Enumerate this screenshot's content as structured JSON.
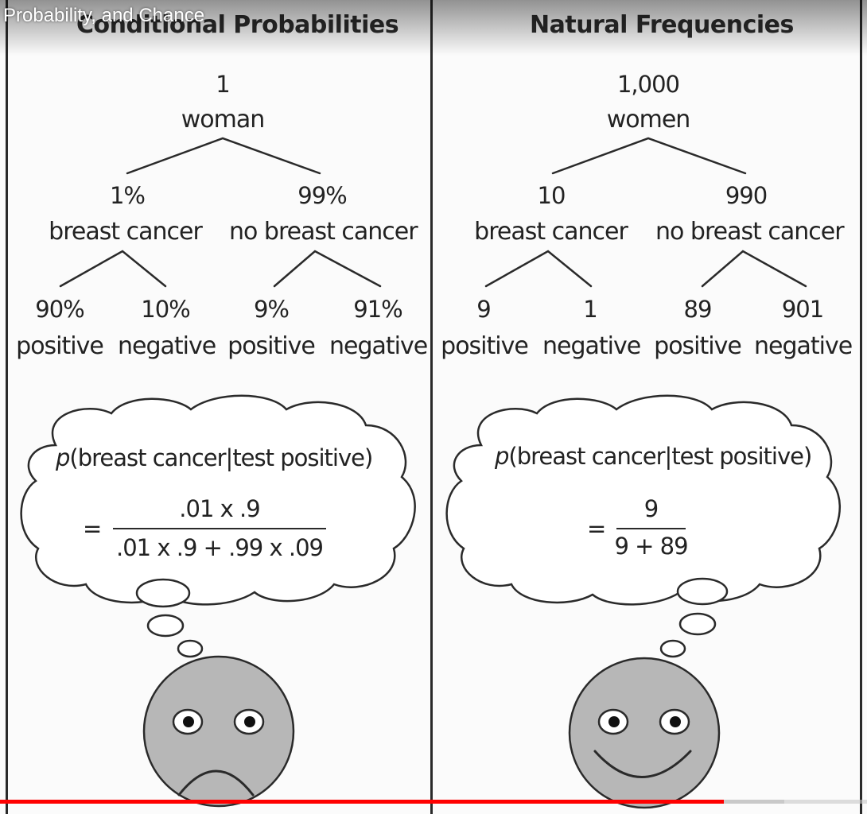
{
  "video": {
    "title": "Probability, and Chance",
    "progress_fraction": 0.835,
    "buffer_fraction": 0.905,
    "progress_color": "#ff0000"
  },
  "left_panel": {
    "heading": "Conditional Probabilities",
    "root": {
      "value": "1",
      "label": "woman"
    },
    "branch_a": {
      "value": "1%",
      "label": "breast cancer"
    },
    "branch_b": {
      "value": "99%",
      "label": "no breast cancer"
    },
    "leaves": [
      {
        "value": "90%",
        "label": "positive"
      },
      {
        "value": "10%",
        "label": "negative"
      },
      {
        "value": "9%",
        "label": "positive"
      },
      {
        "value": "91%",
        "label": "negative"
      }
    ],
    "thought": {
      "p": "p",
      "expression": "(breast cancer|test positive)",
      "equals": "=",
      "numerator": ".01 x .9",
      "denominator": ".01 x .9 + .99 x .09"
    },
    "face": {
      "mood": "sad"
    }
  },
  "right_panel": {
    "heading": "Natural Frequencies",
    "root": {
      "value": "1,000",
      "label": "women"
    },
    "branch_a": {
      "value": "10",
      "label": "breast cancer"
    },
    "branch_b": {
      "value": "990",
      "label": "no breast cancer"
    },
    "leaves": [
      {
        "value": "9",
        "label": "positive"
      },
      {
        "value": "1",
        "label": "negative"
      },
      {
        "value": "89",
        "label": "positive"
      },
      {
        "value": "901",
        "label": "negative"
      }
    ],
    "thought": {
      "p": "p",
      "expression": "(breast cancer|test positive)",
      "equals": "=",
      "numerator": "9",
      "denominator": "9 + 89"
    },
    "face": {
      "mood": "happy"
    }
  },
  "colors": {
    "face_fill": "#b7b7b7",
    "ink": "#222222"
  }
}
